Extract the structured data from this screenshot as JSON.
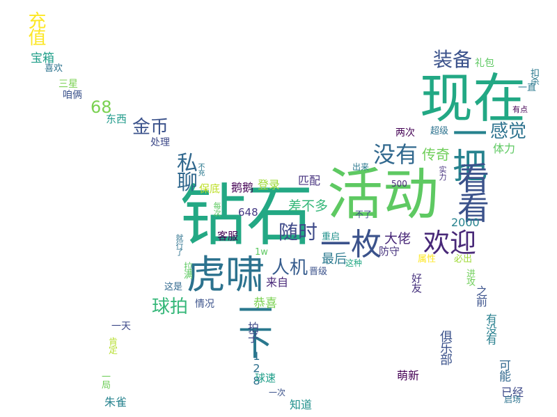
{
  "words": [
    {
      "text": "钻石",
      "color": "#23a884"
    },
    {
      "text": "活动",
      "color": "#5ec962"
    },
    {
      "text": "现在",
      "color": "#22a884"
    },
    {
      "text": "虎啸",
      "color": "#2c728e"
    },
    {
      "text": "一把",
      "color": "#26828e"
    },
    {
      "text": "看看",
      "color": "#3b528b"
    },
    {
      "text": "一下",
      "color": "#2a788e"
    },
    {
      "text": "一枚",
      "color": "#3b528b"
    },
    {
      "text": "欢迎",
      "color": "#482878"
    },
    {
      "text": "没有",
      "color": "#31688e"
    },
    {
      "text": "私聊",
      "color": "#31688e"
    },
    {
      "text": "金币",
      "color": "#3b528b"
    },
    {
      "text": "随时",
      "color": "#3e4a89"
    },
    {
      "text": "装备",
      "color": "#3b528b"
    },
    {
      "text": "感觉",
      "color": "#2c728e"
    },
    {
      "text": "充值",
      "color": "#fde725"
    },
    {
      "text": "球拍",
      "color": "#35b779"
    },
    {
      "text": "人机",
      "color": "#365c8d"
    },
    {
      "text": "68",
      "color": "#7ad151"
    },
    {
      "text": "宝箱",
      "color": "#1f9e89"
    },
    {
      "text": "传奇",
      "color": "#6ece58"
    },
    {
      "text": "差不多",
      "color": "#35b779"
    },
    {
      "text": "大佬",
      "color": "#482878"
    },
    {
      "text": "最后",
      "color": "#2a788e"
    },
    {
      "text": "恭喜",
      "color": "#7ad151"
    },
    {
      "text": "2000",
      "color": "#26828e"
    },
    {
      "text": "俱乐部",
      "color": "#3b528b"
    },
    {
      "text": "鹅鹅",
      "color": "#440154"
    },
    {
      "text": "登录",
      "color": "#a0da39"
    },
    {
      "text": "匹配",
      "color": "#46327e"
    },
    {
      "text": "648",
      "color": "#443983"
    },
    {
      "text": "128",
      "color": "#2d708e"
    },
    {
      "text": "拍子",
      "color": "#3e4a89"
    },
    {
      "text": "来自",
      "color": "#482878"
    },
    {
      "text": "体力",
      "color": "#5ec962"
    },
    {
      "text": "好友",
      "color": "#46327e"
    },
    {
      "text": "可能",
      "color": "#31688e"
    },
    {
      "text": "有没有",
      "color": "#277f8e"
    },
    {
      "text": "之前",
      "color": "#3b528b"
    },
    {
      "text": "萌新",
      "color": "#440154"
    },
    {
      "text": "已经",
      "color": "#3e4a89"
    },
    {
      "text": "东西",
      "color": "#1f9a8a"
    },
    {
      "text": "处理",
      "color": "#3e4a89"
    },
    {
      "text": "保底",
      "color": "#bddf26"
    },
    {
      "text": "客服",
      "color": "#440154"
    },
    {
      "text": "防守",
      "color": "#46327e"
    },
    {
      "text": "球速",
      "color": "#1f9e89"
    },
    {
      "text": "知道",
      "color": "#21918c"
    },
    {
      "text": "朱雀",
      "color": "#26828e"
    },
    {
      "text": "一天",
      "color": "#3e4a89"
    },
    {
      "text": "三星",
      "color": "#7ad151"
    },
    {
      "text": "咱俩",
      "color": "#3b528b"
    },
    {
      "text": "喜欢",
      "color": "#2c728e"
    },
    {
      "text": "礼包",
      "color": "#5ec962"
    },
    {
      "text": "扣杀",
      "color": "#2a788e"
    },
    {
      "text": "一直",
      "color": "#2a788e"
    },
    {
      "text": "有点",
      "color": "#440154"
    },
    {
      "text": "两次",
      "color": "#440154"
    },
    {
      "text": "超级",
      "color": "#2c728e"
    },
    {
      "text": "实力",
      "color": "#46327e"
    },
    {
      "text": "出来",
      "color": "#2a788e"
    },
    {
      "text": "500",
      "color": "#482878"
    },
    {
      "text": "不了",
      "color": "#3e4a89"
    },
    {
      "text": "重启",
      "color": "#21918c"
    },
    {
      "text": "晋级",
      "color": "#3b528b"
    },
    {
      "text": "这种",
      "color": "#22a884"
    },
    {
      "text": "属性",
      "color": "#fde725"
    },
    {
      "text": "必出",
      "color": "#a0da39"
    },
    {
      "text": "进攻",
      "color": "#6ece58"
    },
    {
      "text": "1w",
      "color": "#5ec962"
    },
    {
      "text": "情况",
      "color": "#3b528b"
    },
    {
      "text": "这是",
      "color": "#31688e"
    },
    {
      "text": "拉满",
      "color": "#5ec962"
    },
    {
      "text": "就行了",
      "color": "#2c728e"
    },
    {
      "text": "每次",
      "color": "#5ec962"
    },
    {
      "text": "不充",
      "color": "#2a788e"
    },
    {
      "text": "肯定",
      "color": "#b5de2b"
    },
    {
      "text": "一局",
      "color": "#6ece58"
    },
    {
      "text": "一次",
      "color": "#3b528b"
    },
    {
      "text": "启场",
      "color": "#2c728e"
    }
  ]
}
